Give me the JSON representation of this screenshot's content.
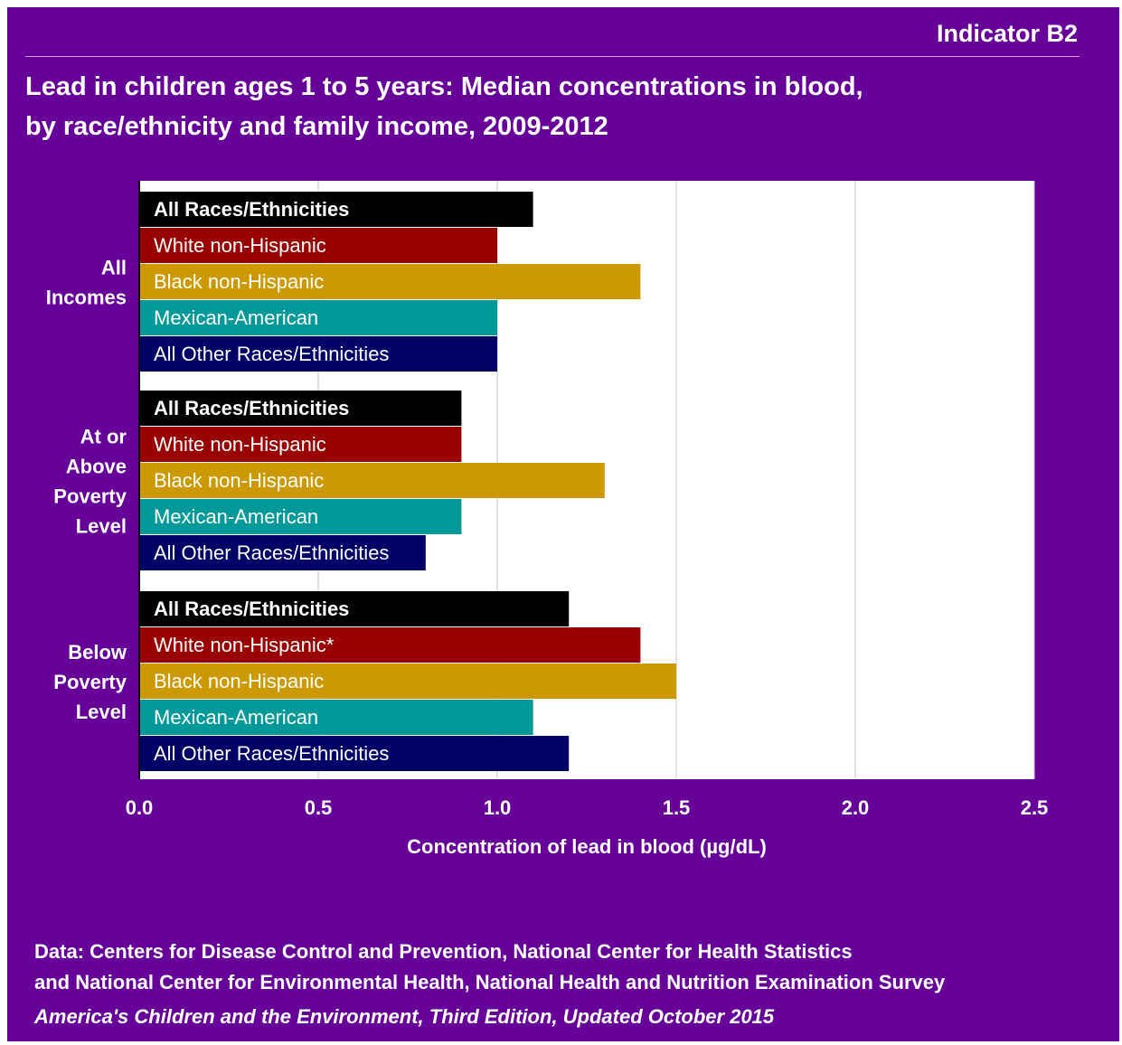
{
  "header": {
    "indicator": "Indicator B2",
    "title_line1": "Lead in children ages 1 to 5 years: Median concentrations in blood,",
    "title_line2": "by race/ethnicity and family income, 2009-2012"
  },
  "source": {
    "line1": "Data: Centers for Disease Control and Prevention, National Center for Health Statistics",
    "line2": "and National Center for Environmental Health, National Health and Nutrition Examination Survey",
    "line3": "America's Children and the Environment, Third Edition, Updated October 2015"
  },
  "chart_data": {
    "type": "bar",
    "orientation": "horizontal",
    "xlabel": "Concentration of lead in blood (µg/dL)",
    "xlim": [
      0,
      2.5
    ],
    "xticks": [
      "0.0",
      "0.5",
      "1.0",
      "1.5",
      "2.0",
      "2.5"
    ],
    "grid": true,
    "groups": [
      {
        "label_lines": [
          "All",
          "Incomes"
        ],
        "bars": [
          {
            "label": "All Races/Ethnicities",
            "value": 1.1,
            "color": "#000000",
            "bold": true
          },
          {
            "label": "White non-Hispanic",
            "value": 1.0,
            "color": "#990000",
            "bold": false
          },
          {
            "label": "Black non-Hispanic",
            "value": 1.4,
            "color": "#cc9900",
            "bold": false
          },
          {
            "label": "Mexican-American",
            "value": 1.0,
            "color": "#009999",
            "bold": false
          },
          {
            "label": "All Other Races/Ethnicities",
            "value": 1.0,
            "color": "#000066",
            "bold": false
          }
        ]
      },
      {
        "label_lines": [
          "At or",
          "Above",
          "Poverty",
          "Level"
        ],
        "bars": [
          {
            "label": "All Races/Ethnicities",
            "value": 0.9,
            "color": "#000000",
            "bold": true
          },
          {
            "label": "White non-Hispanic",
            "value": 0.9,
            "color": "#990000",
            "bold": false
          },
          {
            "label": "Black non-Hispanic",
            "value": 1.3,
            "color": "#cc9900",
            "bold": false
          },
          {
            "label": "Mexican-American",
            "value": 0.9,
            "color": "#009999",
            "bold": false
          },
          {
            "label": "All Other Races/Ethnicities",
            "value": 0.8,
            "color": "#000066",
            "bold": false
          }
        ]
      },
      {
        "label_lines": [
          "Below",
          "Poverty",
          "Level"
        ],
        "bars": [
          {
            "label": "All Races/Ethnicities",
            "value": 1.2,
            "color": "#000000",
            "bold": true
          },
          {
            "label": "White non-Hispanic*",
            "value": 1.4,
            "color": "#990000",
            "bold": false
          },
          {
            "label": "Black non-Hispanic",
            "value": 1.5,
            "color": "#cc9900",
            "bold": false
          },
          {
            "label": "Mexican-American",
            "value": 1.1,
            "color": "#009999",
            "bold": false
          },
          {
            "label": "All Other Races/Ethnicities",
            "value": 1.2,
            "color": "#000066",
            "bold": false
          }
        ]
      }
    ]
  }
}
